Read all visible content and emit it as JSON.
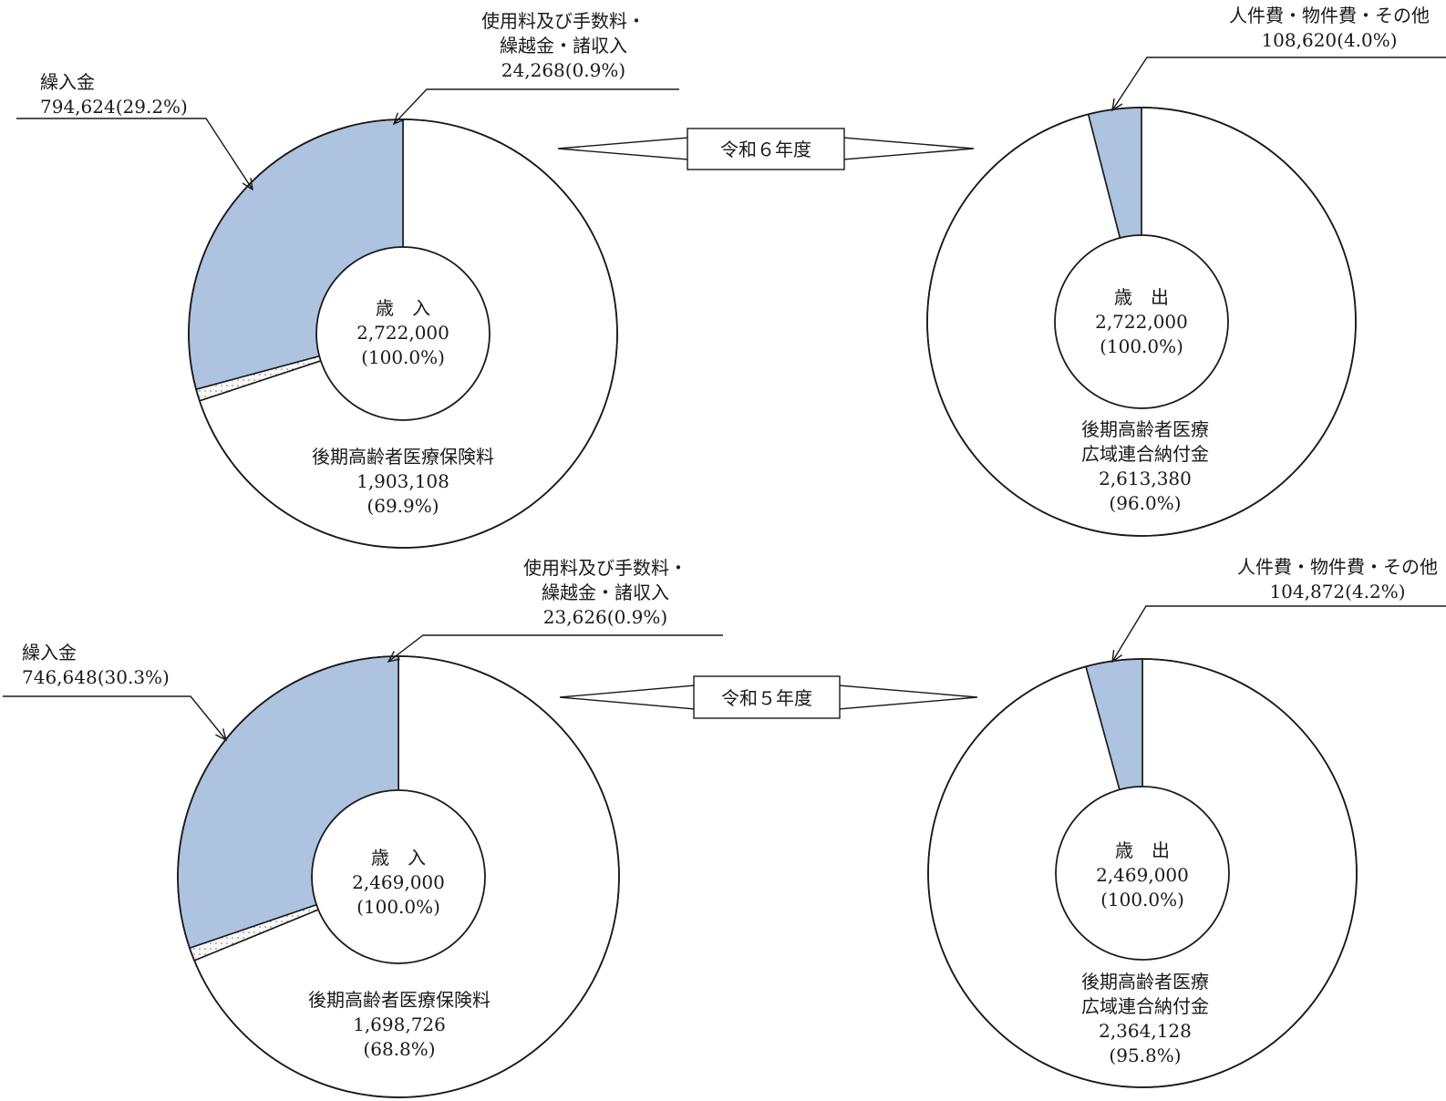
{
  "colors": {
    "accent": "#adc3df",
    "base": "#ffffff",
    "stroke": "#1a1a1a",
    "dotted": "#f2f2f2"
  },
  "years": [
    {
      "label": "令和６年度"
    },
    {
      "label": "令和５年度"
    }
  ],
  "chart_data": [
    {
      "type": "pie",
      "center": {
        "lines": [
          "歳　入",
          "2,722,000",
          "(100.0%)"
        ]
      },
      "slices": [
        {
          "name_lines": [
            "後期高齢者医療保険料"
          ],
          "value": 1903108,
          "value_label": "1,903,108",
          "percent_label": "(69.9%)",
          "color": "#ffffff"
        },
        {
          "name_lines": [
            "繰入金"
          ],
          "value": 794624,
          "value_label": "794,624(29.2%)",
          "color": "#adc3df"
        },
        {
          "name_lines": [
            "使用料及び手数料・",
            "繰越金・諸収入"
          ],
          "value": 24268,
          "value_label": "24,268(0.9%)",
          "color": "#f2f2f2"
        }
      ]
    },
    {
      "type": "pie",
      "center": {
        "lines": [
          "歳　出",
          "2,722,000",
          "(100.0%)"
        ]
      },
      "slices": [
        {
          "name_lines": [
            "後期高齢者医療",
            "広域連合納付金"
          ],
          "value": 2613380,
          "value_label": "2,613,380",
          "percent_label": "(96.0%)",
          "color": "#ffffff"
        },
        {
          "name_lines": [
            "人件費・物件費・その他"
          ],
          "value": 108620,
          "value_label": "108,620(4.0%)",
          "color": "#adc3df"
        }
      ]
    },
    {
      "type": "pie",
      "center": {
        "lines": [
          "歳　入",
          "2,469,000",
          "(100.0%)"
        ]
      },
      "slices": [
        {
          "name_lines": [
            "後期高齢者医療保険料"
          ],
          "value": 1698726,
          "value_label": "1,698,726",
          "percent_label": "(68.8%)",
          "color": "#ffffff"
        },
        {
          "name_lines": [
            "繰入金"
          ],
          "value": 746648,
          "value_label": "746,648(30.3%)",
          "color": "#adc3df"
        },
        {
          "name_lines": [
            "使用料及び手数料・",
            "繰越金・諸収入"
          ],
          "value": 23626,
          "value_label": "23,626(0.9%)",
          "color": "#f2f2f2"
        }
      ]
    },
    {
      "type": "pie",
      "center": {
        "lines": [
          "歳　出",
          "2,469,000",
          "(100.0%)"
        ]
      },
      "slices": [
        {
          "name_lines": [
            "後期高齢者医療",
            "広域連合納付金"
          ],
          "value": 2364128,
          "value_label": "2,364,128",
          "percent_label": "(95.8%)",
          "color": "#ffffff"
        },
        {
          "name_lines": [
            "人件費・物件費・その他"
          ],
          "value": 104872,
          "value_label": "104,872(4.2%)",
          "color": "#adc3df"
        }
      ]
    }
  ]
}
